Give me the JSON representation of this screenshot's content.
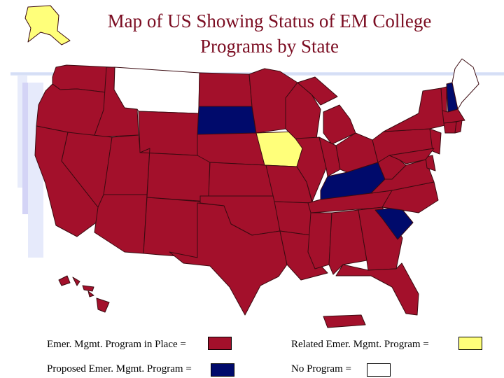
{
  "title": {
    "line1": "Map of US Showing Status of EM College",
    "line2": "Programs by State"
  },
  "colors": {
    "in_place": "#a3102b",
    "proposed": "#000a6b",
    "related": "#ffff7a",
    "none": "#ffffff",
    "border": "#3a0a10",
    "title": "#7b0d22"
  },
  "legend": {
    "in_place_label": "Emer. Mgmt. Program in Place =",
    "related_label": "Related Emer. Mgmt. Program =",
    "proposed_label": "Proposed Emer. Mgmt. Program =",
    "none_label": "No Program ="
  },
  "state_status": {
    "in_place": [
      "WA",
      "OR",
      "CA",
      "ID",
      "NV",
      "UT",
      "AZ",
      "WY",
      "CO",
      "NM",
      "ND",
      "NE",
      "KS",
      "OK",
      "TX",
      "MN",
      "MO",
      "AR",
      "LA",
      "WI",
      "IL",
      "MI",
      "IN",
      "OH",
      "TN",
      "MS",
      "AL",
      "GA",
      "FL",
      "NC",
      "VA",
      "WV",
      "PA",
      "NY",
      "NJ",
      "DE",
      "MD",
      "VT",
      "MA",
      "CT",
      "RI",
      "HI",
      "PR"
    ],
    "proposed": [
      "SD",
      "KY",
      "SC",
      "NH"
    ],
    "related": [
      "IA",
      "AK"
    ],
    "none": [
      "MT",
      "ME"
    ]
  }
}
